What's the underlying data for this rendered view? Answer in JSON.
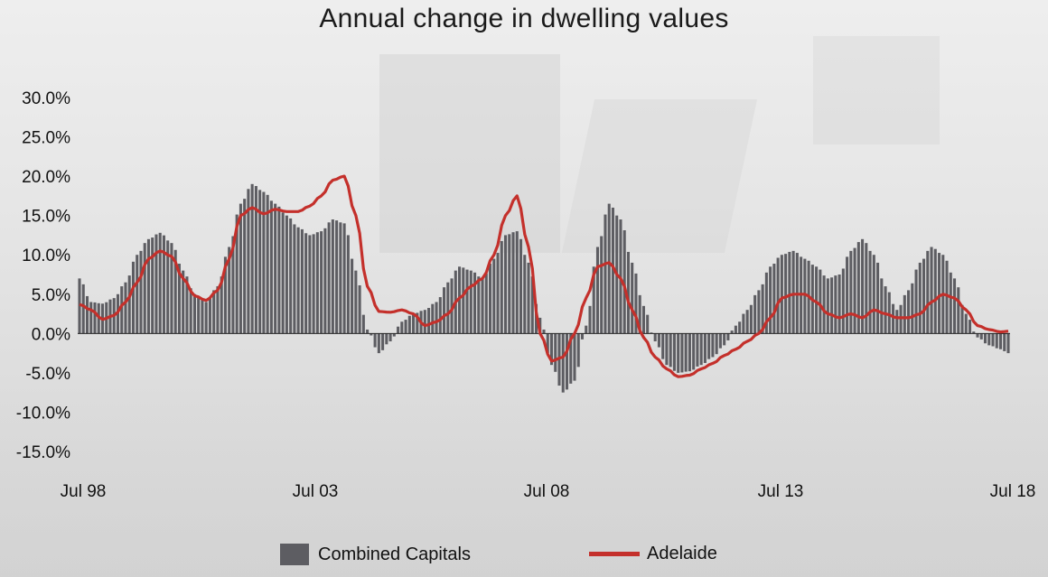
{
  "title": "Annual change in dwelling values",
  "legend": {
    "bars_label": "Combined Capitals",
    "line_label": "Adelaide"
  },
  "colors": {
    "bars": "#5d5d62",
    "line": "#c4302b",
    "zero_line": "#222222"
  },
  "chart_data": {
    "type": "bar",
    "title": "Annual change in dwelling values",
    "x_ticks": [
      "Jul 98",
      "Jul 03",
      "Jul 08",
      "Jul 13",
      "Jul 18"
    ],
    "y_ticks": [
      "30.0%",
      "25.0%",
      "20.0%",
      "15.0%",
      "10.0%",
      "5.0%",
      "0.0%",
      "-5.0%",
      "-10.0%",
      "-15.0%"
    ],
    "ylim": [
      -15,
      30
    ],
    "x_range": [
      "1998-07",
      "2018-09"
    ],
    "grid": false,
    "legend_position": "bottom",
    "series": [
      {
        "name": "Combined Capitals",
        "type": "bar",
        "points": [
          [
            "1998-07",
            7.0
          ],
          [
            "1998-10",
            4.0
          ],
          [
            "1999-01",
            3.8
          ],
          [
            "1999-04",
            4.5
          ],
          [
            "1999-07",
            6.5
          ],
          [
            "1999-10",
            10.0
          ],
          [
            "2000-01",
            12.0
          ],
          [
            "2000-04",
            12.8
          ],
          [
            "2000-07",
            11.5
          ],
          [
            "2000-10",
            8.0
          ],
          [
            "2001-01",
            5.0
          ],
          [
            "2001-04",
            4.0
          ],
          [
            "2001-07",
            6.0
          ],
          [
            "2001-10",
            11.0
          ],
          [
            "2002-01",
            16.5
          ],
          [
            "2002-04",
            19.0
          ],
          [
            "2002-07",
            18.0
          ],
          [
            "2002-10",
            16.5
          ],
          [
            "2003-01",
            15.0
          ],
          [
            "2003-04",
            13.5
          ],
          [
            "2003-07",
            12.5
          ],
          [
            "2003-10",
            13.0
          ],
          [
            "2004-01",
            14.5
          ],
          [
            "2004-04",
            14.0
          ],
          [
            "2004-07",
            8.0
          ],
          [
            "2004-10",
            0.5
          ],
          [
            "2005-01",
            -2.5
          ],
          [
            "2005-04",
            -1.0
          ],
          [
            "2005-07",
            1.5
          ],
          [
            "2005-10",
            2.5
          ],
          [
            "2006-01",
            3.0
          ],
          [
            "2006-04",
            4.0
          ],
          [
            "2006-07",
            6.5
          ],
          [
            "2006-10",
            8.5
          ],
          [
            "2007-01",
            8.0
          ],
          [
            "2007-04",
            7.0
          ],
          [
            "2007-07",
            9.5
          ],
          [
            "2007-10",
            12.5
          ],
          [
            "2008-01",
            13.0
          ],
          [
            "2008-04",
            9.0
          ],
          [
            "2008-07",
            2.0
          ],
          [
            "2008-10",
            -4.0
          ],
          [
            "2009-01",
            -7.5
          ],
          [
            "2009-04",
            -6.0
          ],
          [
            "2009-07",
            1.0
          ],
          [
            "2009-10",
            11.0
          ],
          [
            "2010-01",
            16.5
          ],
          [
            "2010-04",
            14.5
          ],
          [
            "2010-07",
            9.0
          ],
          [
            "2010-10",
            3.5
          ],
          [
            "2011-01",
            -1.0
          ],
          [
            "2011-04",
            -4.0
          ],
          [
            "2011-07",
            -5.0
          ],
          [
            "2011-10",
            -4.8
          ],
          [
            "2012-01",
            -4.0
          ],
          [
            "2012-04",
            -3.0
          ],
          [
            "2012-07",
            -1.5
          ],
          [
            "2012-10",
            1.0
          ],
          [
            "2013-01",
            3.0
          ],
          [
            "2013-04",
            5.5
          ],
          [
            "2013-07",
            8.5
          ],
          [
            "2013-10",
            10.0
          ],
          [
            "2014-01",
            10.5
          ],
          [
            "2014-04",
            9.5
          ],
          [
            "2014-07",
            8.5
          ],
          [
            "2014-10",
            7.0
          ],
          [
            "2015-01",
            7.5
          ],
          [
            "2015-04",
            10.5
          ],
          [
            "2015-07",
            12.0
          ],
          [
            "2015-10",
            10.0
          ],
          [
            "2016-01",
            6.0
          ],
          [
            "2016-04",
            3.0
          ],
          [
            "2016-07",
            5.5
          ],
          [
            "2016-10",
            9.0
          ],
          [
            "2017-01",
            11.0
          ],
          [
            "2017-04",
            10.0
          ],
          [
            "2017-07",
            7.0
          ],
          [
            "2017-10",
            2.5
          ],
          [
            "2018-01",
            -0.5
          ],
          [
            "2018-04",
            -1.5
          ],
          [
            "2018-07",
            -2.0
          ],
          [
            "2018-09",
            -2.5
          ]
        ]
      },
      {
        "name": "Adelaide",
        "type": "line",
        "points": [
          [
            "1998-07",
            3.7
          ],
          [
            "1998-10",
            3.0
          ],
          [
            "1999-01",
            1.8
          ],
          [
            "1999-04",
            2.3
          ],
          [
            "1999-07",
            4.0
          ],
          [
            "1999-10",
            6.5
          ],
          [
            "2000-01",
            9.5
          ],
          [
            "2000-04",
            10.5
          ],
          [
            "2000-07",
            9.8
          ],
          [
            "2000-10",
            7.0
          ],
          [
            "2001-01",
            4.8
          ],
          [
            "2001-04",
            4.2
          ],
          [
            "2001-07",
            5.5
          ],
          [
            "2001-10",
            9.5
          ],
          [
            "2002-01",
            15.0
          ],
          [
            "2002-04",
            16.0
          ],
          [
            "2002-07",
            15.2
          ],
          [
            "2002-10",
            15.8
          ],
          [
            "2003-01",
            15.5
          ],
          [
            "2003-04",
            15.5
          ],
          [
            "2003-07",
            16.2
          ],
          [
            "2003-10",
            17.5
          ],
          [
            "2004-01",
            19.5
          ],
          [
            "2004-04",
            20.0
          ],
          [
            "2004-07",
            15.0
          ],
          [
            "2004-10",
            6.0
          ],
          [
            "2005-01",
            2.8
          ],
          [
            "2005-04",
            2.7
          ],
          [
            "2005-07",
            3.0
          ],
          [
            "2005-10",
            2.5
          ],
          [
            "2006-01",
            1.0
          ],
          [
            "2006-04",
            1.5
          ],
          [
            "2006-07",
            2.5
          ],
          [
            "2006-10",
            4.5
          ],
          [
            "2007-01",
            6.0
          ],
          [
            "2007-04",
            7.0
          ],
          [
            "2007-07",
            10.0
          ],
          [
            "2007-10",
            15.0
          ],
          [
            "2008-01",
            17.5
          ],
          [
            "2008-04",
            11.0
          ],
          [
            "2008-07",
            0.0
          ],
          [
            "2008-10",
            -3.5
          ],
          [
            "2009-01",
            -3.0
          ],
          [
            "2009-04",
            0.0
          ],
          [
            "2009-07",
            4.5
          ],
          [
            "2009-10",
            8.5
          ],
          [
            "2010-01",
            9.0
          ],
          [
            "2010-04",
            7.0
          ],
          [
            "2010-07",
            3.0
          ],
          [
            "2010-10",
            -0.5
          ],
          [
            "2011-01",
            -3.0
          ],
          [
            "2011-04",
            -4.5
          ],
          [
            "2011-07",
            -5.5
          ],
          [
            "2011-10",
            -5.3
          ],
          [
            "2012-01",
            -4.5
          ],
          [
            "2012-04",
            -3.8
          ],
          [
            "2012-07",
            -2.8
          ],
          [
            "2012-10",
            -2.0
          ],
          [
            "2013-01",
            -1.0
          ],
          [
            "2013-04",
            0.0
          ],
          [
            "2013-07",
            2.0
          ],
          [
            "2013-10",
            4.5
          ],
          [
            "2014-01",
            5.0
          ],
          [
            "2014-04",
            5.0
          ],
          [
            "2014-07",
            4.0
          ],
          [
            "2014-10",
            2.5
          ],
          [
            "2015-01",
            2.0
          ],
          [
            "2015-04",
            2.5
          ],
          [
            "2015-07",
            2.0
          ],
          [
            "2015-10",
            3.0
          ],
          [
            "2016-01",
            2.5
          ],
          [
            "2016-04",
            2.0
          ],
          [
            "2016-07",
            2.0
          ],
          [
            "2016-10",
            2.5
          ],
          [
            "2017-01",
            4.0
          ],
          [
            "2017-04",
            5.0
          ],
          [
            "2017-07",
            4.5
          ],
          [
            "2017-10",
            3.0
          ],
          [
            "2018-01",
            1.0
          ],
          [
            "2018-04",
            0.5
          ],
          [
            "2018-07",
            0.2
          ],
          [
            "2018-09",
            0.3
          ]
        ]
      }
    ]
  }
}
